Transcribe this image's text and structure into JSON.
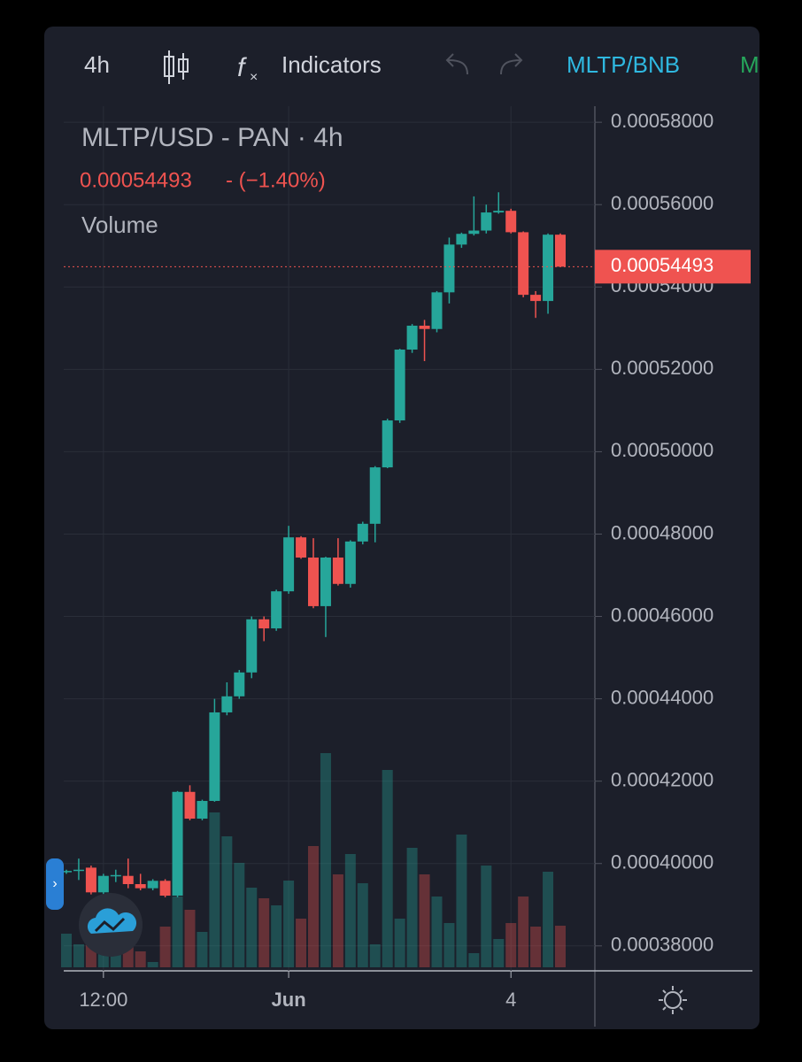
{
  "toolbar": {
    "interval": "4h",
    "indicators": "Indicators",
    "symbol": "MLTP/BNB",
    "next": "M"
  },
  "chart_data": {
    "type": "candlestick",
    "title": "MLTP/USD - PAN · 4h",
    "price_change": "- (−1.40%)",
    "volume_label": "Volume",
    "last_price": 0.00054493,
    "up_color": "#26a69a",
    "down_color": "#ef5350",
    "categories": [
      null,
      null,
      null,
      "12:00",
      null,
      null,
      null,
      null,
      null,
      null,
      null,
      null,
      null,
      null,
      null,
      null,
      null,
      null,
      "Jun",
      null,
      null,
      null,
      null,
      null,
      null,
      null,
      null,
      null,
      null,
      null,
      null,
      null,
      null,
      null,
      null,
      null,
      "4",
      null,
      null,
      null,
      null
    ],
    "open": [
      0.000398,
      0.0003982,
      0.000399,
      0.000393,
      0.000397,
      0.000397,
      0.000395,
      0.000394,
      0.0003958,
      0.0003922,
      0.0004174,
      0.0004109,
      0.0004152,
      0.0004367,
      0.0004406,
      0.0004464,
      0.0004593,
      0.0004571,
      0.0004661,
      0.0004792,
      0.0004743,
      0.0004625,
      0.0004743,
      0.0004679,
      0.0004782,
      0.0004825,
      0.0004962,
      0.0005076,
      0.0005248,
      0.0005306,
      0.0005298,
      0.0005387,
      0.0005503,
      0.0005529,
      0.0005537,
      0.0005581,
      0.0005585,
      0.0005533,
      0.0005381,
      0.0005366,
      0.0005527
    ],
    "high": [
      0.0003985,
      0.0004012,
      0.0003995,
      0.0003975,
      0.0003985,
      0.0004012,
      0.0003975,
      0.0003962,
      0.0003962,
      0.0004176,
      0.000419,
      0.0004155,
      0.00044,
      0.000444,
      0.000447,
      0.00046,
      0.00046,
      0.0004665,
      0.000482,
      0.0004795,
      0.000479,
      0.0004745,
      0.000479,
      0.0004785,
      0.000483,
      0.0004965,
      0.000508,
      0.000525,
      0.000531,
      0.000532,
      0.000539,
      0.000552,
      0.0005532,
      0.000562,
      0.00056,
      0.000563,
      0.000559,
      0.0005535,
      0.000539,
      0.000553,
      0.000553
    ],
    "low": [
      0.0003975,
      0.000396,
      0.0003925,
      0.000392,
      0.0003955,
      0.000394,
      0.0003935,
      0.0003935,
      0.0003918,
      0.0003918,
      0.0004105,
      0.0004105,
      0.000415,
      0.000436,
      0.00044,
      0.000445,
      0.000454,
      0.0004565,
      0.0004655,
      0.000474,
      0.000462,
      0.000455,
      0.0004675,
      0.000467,
      0.0004775,
      0.000478,
      0.000496,
      0.000507,
      0.000524,
      0.000522,
      0.000529,
      0.000536,
      0.0005495,
      0.0005525,
      0.000553,
      0.0005578,
      0.000553,
      0.0005375,
      0.0005325,
      0.0005335,
      0.0005449
    ],
    "close": [
      0.0003982,
      0.0003985,
      0.000393,
      0.000397,
      0.0003972,
      0.000395,
      0.000394,
      0.0003958,
      0.0003922,
      0.0004174,
      0.0004109,
      0.0004152,
      0.0004367,
      0.0004406,
      0.0004464,
      0.0004593,
      0.0004571,
      0.0004661,
      0.0004792,
      0.0004743,
      0.0004625,
      0.0004743,
      0.0004679,
      0.0004782,
      0.0004825,
      0.0004962,
      0.0005076,
      0.0005248,
      0.0005306,
      0.0005298,
      0.0005387,
      0.0005503,
      0.0005529,
      0.0005537,
      0.0005581,
      0.0005585,
      0.0005533,
      0.0005381,
      0.0005366,
      0.0005527,
      0.00054493
    ],
    "volume": [
      38,
      26,
      30,
      22,
      18,
      28,
      18,
      6,
      46,
      80,
      65,
      40,
      175,
      148,
      118,
      90,
      78,
      70,
      98,
      55,
      137,
      242,
      105,
      128,
      95,
      26,
      223,
      55,
      135,
      105,
      80,
      50,
      150,
      16,
      115,
      32,
      50,
      80,
      46,
      108,
      47
    ],
    "ylim": [
      0.0003748,
      0.0005839
    ],
    "yticks": [
      {
        "value": 0.00038,
        "label": "0.00038000"
      },
      {
        "value": 0.0004,
        "label": "0.00040000"
      },
      {
        "value": 0.00042,
        "label": "0.00042000"
      },
      {
        "value": 0.00044,
        "label": "0.00044000"
      },
      {
        "value": 0.00046,
        "label": "0.00046000"
      },
      {
        "value": 0.00048,
        "label": "0.00048000"
      },
      {
        "value": 0.0005,
        "label": "0.00050000"
      },
      {
        "value": 0.00052,
        "label": "0.00052000"
      },
      {
        "value": 0.00054,
        "label": "0.00054000"
      },
      {
        "value": 0.00056,
        "label": "0.00056000"
      },
      {
        "value": 0.00058,
        "label": "0.00058000"
      }
    ],
    "grid": true
  }
}
